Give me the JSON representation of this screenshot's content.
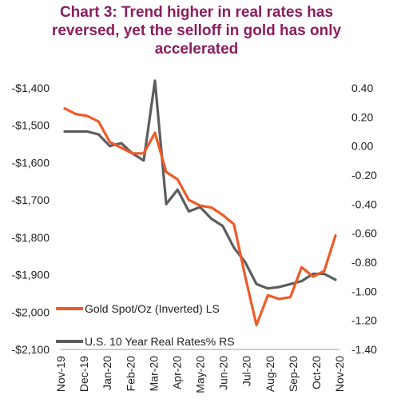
{
  "title_lines": [
    "Chart 3: Trend higher in real rates has",
    "reversed, yet the selloff in gold has only",
    "accelerated"
  ],
  "chart_data": {
    "type": "line",
    "title": "Chart 3: Trend higher in real rates has reversed, yet the selloff in gold has only accelerated",
    "x_tick_labels": [
      "Nov-19",
      "Dec-19",
      "Jan-20",
      "Feb-20",
      "Mar-20",
      "Apr-20",
      "May-20",
      "Jun-20",
      "Jul-20",
      "Aug-20",
      "Sep-20",
      "Oct-20",
      "Nov-20"
    ],
    "x": [
      "Nov-19",
      "Nov-19",
      "Dec-19",
      "Dec-19",
      "Jan-20",
      "Jan-20",
      "Feb-20",
      "Feb-20",
      "Mar-20",
      "Mar-20",
      "Apr-20",
      "Apr-20",
      "May-20",
      "May-20",
      "Jun-20",
      "Jun-20",
      "Jul-20",
      "Jul-20",
      "Aug-20",
      "Aug-20",
      "Sep-20",
      "Sep-20",
      "Oct-20",
      "Oct-20",
      "Nov-20"
    ],
    "left_axis": {
      "ylim": [
        -2100,
        -1400
      ],
      "tick_values": [
        -1400,
        -1500,
        -1600,
        -1700,
        -1800,
        -1900,
        -2000,
        -2100
      ],
      "tick_labels": [
        "-$1,400",
        "-$1,500",
        "-$1,600",
        "-$1,700",
        "-$1,800",
        "-$1,900",
        "-$2,000",
        "-$2,100"
      ]
    },
    "right_axis": {
      "ylim": [
        -1.4,
        0.4
      ],
      "tick_values": [
        0.4,
        0.2,
        0.0,
        -0.2,
        -0.4,
        -0.6,
        -0.8,
        -1.0,
        -1.2,
        -1.4
      ],
      "tick_labels": [
        "0.40",
        "0.20",
        "0.00",
        "-0.20",
        "-0.40",
        "-0.60",
        "-0.80",
        "-1.00",
        "-1.20",
        "-1.40"
      ]
    },
    "series": [
      {
        "name": "Gold Spot/Oz (Inverted) LS",
        "axis": "left",
        "color": "#f05a28",
        "values": [
          -1455,
          -1470,
          -1475,
          -1490,
          -1545,
          -1560,
          -1575,
          -1575,
          -1520,
          -1625,
          -1645,
          -1700,
          -1715,
          -1720,
          -1740,
          -1765,
          -1905,
          -2035,
          -1955,
          -1965,
          -1960,
          -1880,
          -1905,
          -1890,
          -1795
        ]
      },
      {
        "name": "U.S. 10 Year Real Rates% RS",
        "axis": "right",
        "color": "#5d5d5d",
        "values": [
          0.1,
          0.1,
          0.1,
          0.08,
          0.0,
          0.02,
          -0.05,
          -0.1,
          0.45,
          -0.4,
          -0.3,
          -0.45,
          -0.42,
          -0.5,
          -0.55,
          -0.7,
          -0.8,
          -0.95,
          -0.98,
          -0.97,
          -0.95,
          -0.93,
          -0.88,
          -0.88,
          -0.92
        ]
      }
    ],
    "legend_position": "lower-left inside plot",
    "grid": false
  }
}
